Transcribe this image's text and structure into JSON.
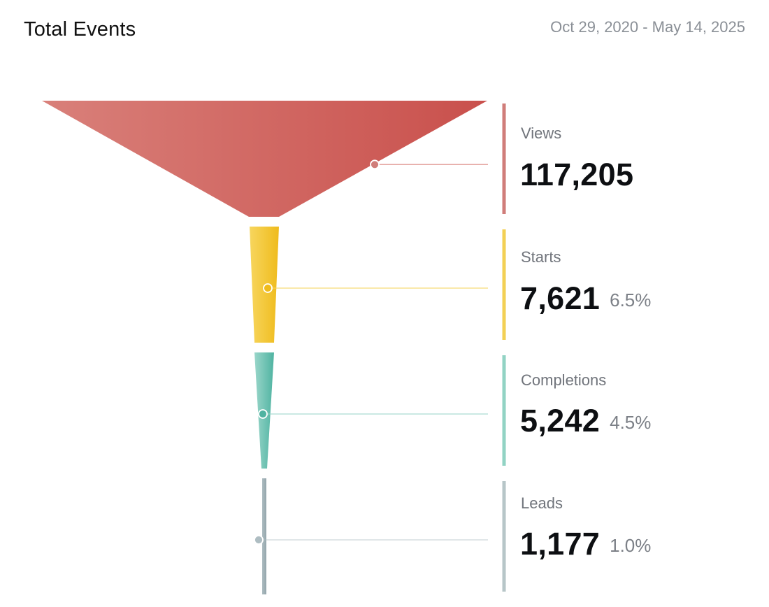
{
  "header": {
    "title": "Total Events",
    "date_range": "Oct 29, 2020 - May 14, 2025"
  },
  "chart_data": {
    "type": "funnel",
    "title": "Total Events",
    "stages": [
      {
        "name": "Views",
        "value": 117205,
        "value_label": "117,205",
        "percent_label": "",
        "color": "#c9504c",
        "color_light": "#d9807a",
        "bar_color": "#d07d7a"
      },
      {
        "name": "Starts",
        "value": 7621,
        "value_label": "7,621",
        "percent_label": "6.5%",
        "color": "#efbb1c",
        "color_light": "#f7d65e",
        "bar_color": "#f3d055"
      },
      {
        "name": "Completions",
        "value": 5242,
        "value_label": "5,242",
        "percent_label": "4.5%",
        "color": "#4fb3a1",
        "color_light": "#9ad6ca",
        "bar_color": "#92d3c4"
      },
      {
        "name": "Leads",
        "value": 1177,
        "value_label": "1,177",
        "percent_label": "1.0%",
        "color": "#93a5ab",
        "color_light": "#aebdc2",
        "bar_color": "#b7c6c8"
      }
    ]
  }
}
